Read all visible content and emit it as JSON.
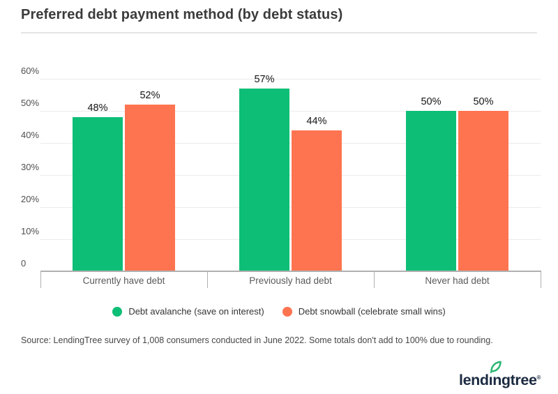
{
  "chart_data": {
    "type": "bar",
    "title": "Preferred debt payment method (by debt status)",
    "categories": [
      "Currently have debt",
      "Previously had debt",
      "Never had debt"
    ],
    "series": [
      {
        "name": "Debt avalanche (save on interest)",
        "color": "#0dbe76",
        "values": [
          48,
          57,
          50
        ]
      },
      {
        "name": "Debt snowball (celebrate small wins)",
        "color": "#ff7450",
        "values": [
          52,
          44,
          50
        ]
      }
    ],
    "value_suffix": "%",
    "data_labels": true,
    "xlabel": "",
    "ylabel": "",
    "ylim": [
      0,
      60
    ],
    "grid": true,
    "legend_position": "bottom",
    "y_ticks": [
      {
        "value": 0,
        "label": "0"
      },
      {
        "value": 10,
        "label": "10%"
      },
      {
        "value": 20,
        "label": "20%"
      },
      {
        "value": 30,
        "label": "30%"
      },
      {
        "value": 40,
        "label": "40%"
      },
      {
        "value": 50,
        "label": "50%"
      },
      {
        "value": 60,
        "label": "60%"
      }
    ]
  },
  "footer": {
    "source": "Source: LendingTree survey of 1,008 consumers conducted in June 2022. Some totals don't add to 100% due to rounding.",
    "logo": {
      "prefix": "lend",
      "dotless_i": "ı",
      "suffix": "ngtree",
      "registered": "®"
    }
  },
  "colors": {
    "avalanche_green": "#0dbe76",
    "snowball_orange": "#ff7450",
    "logo_navy": "#1b2a41",
    "leaf_green": "#2bb673"
  }
}
